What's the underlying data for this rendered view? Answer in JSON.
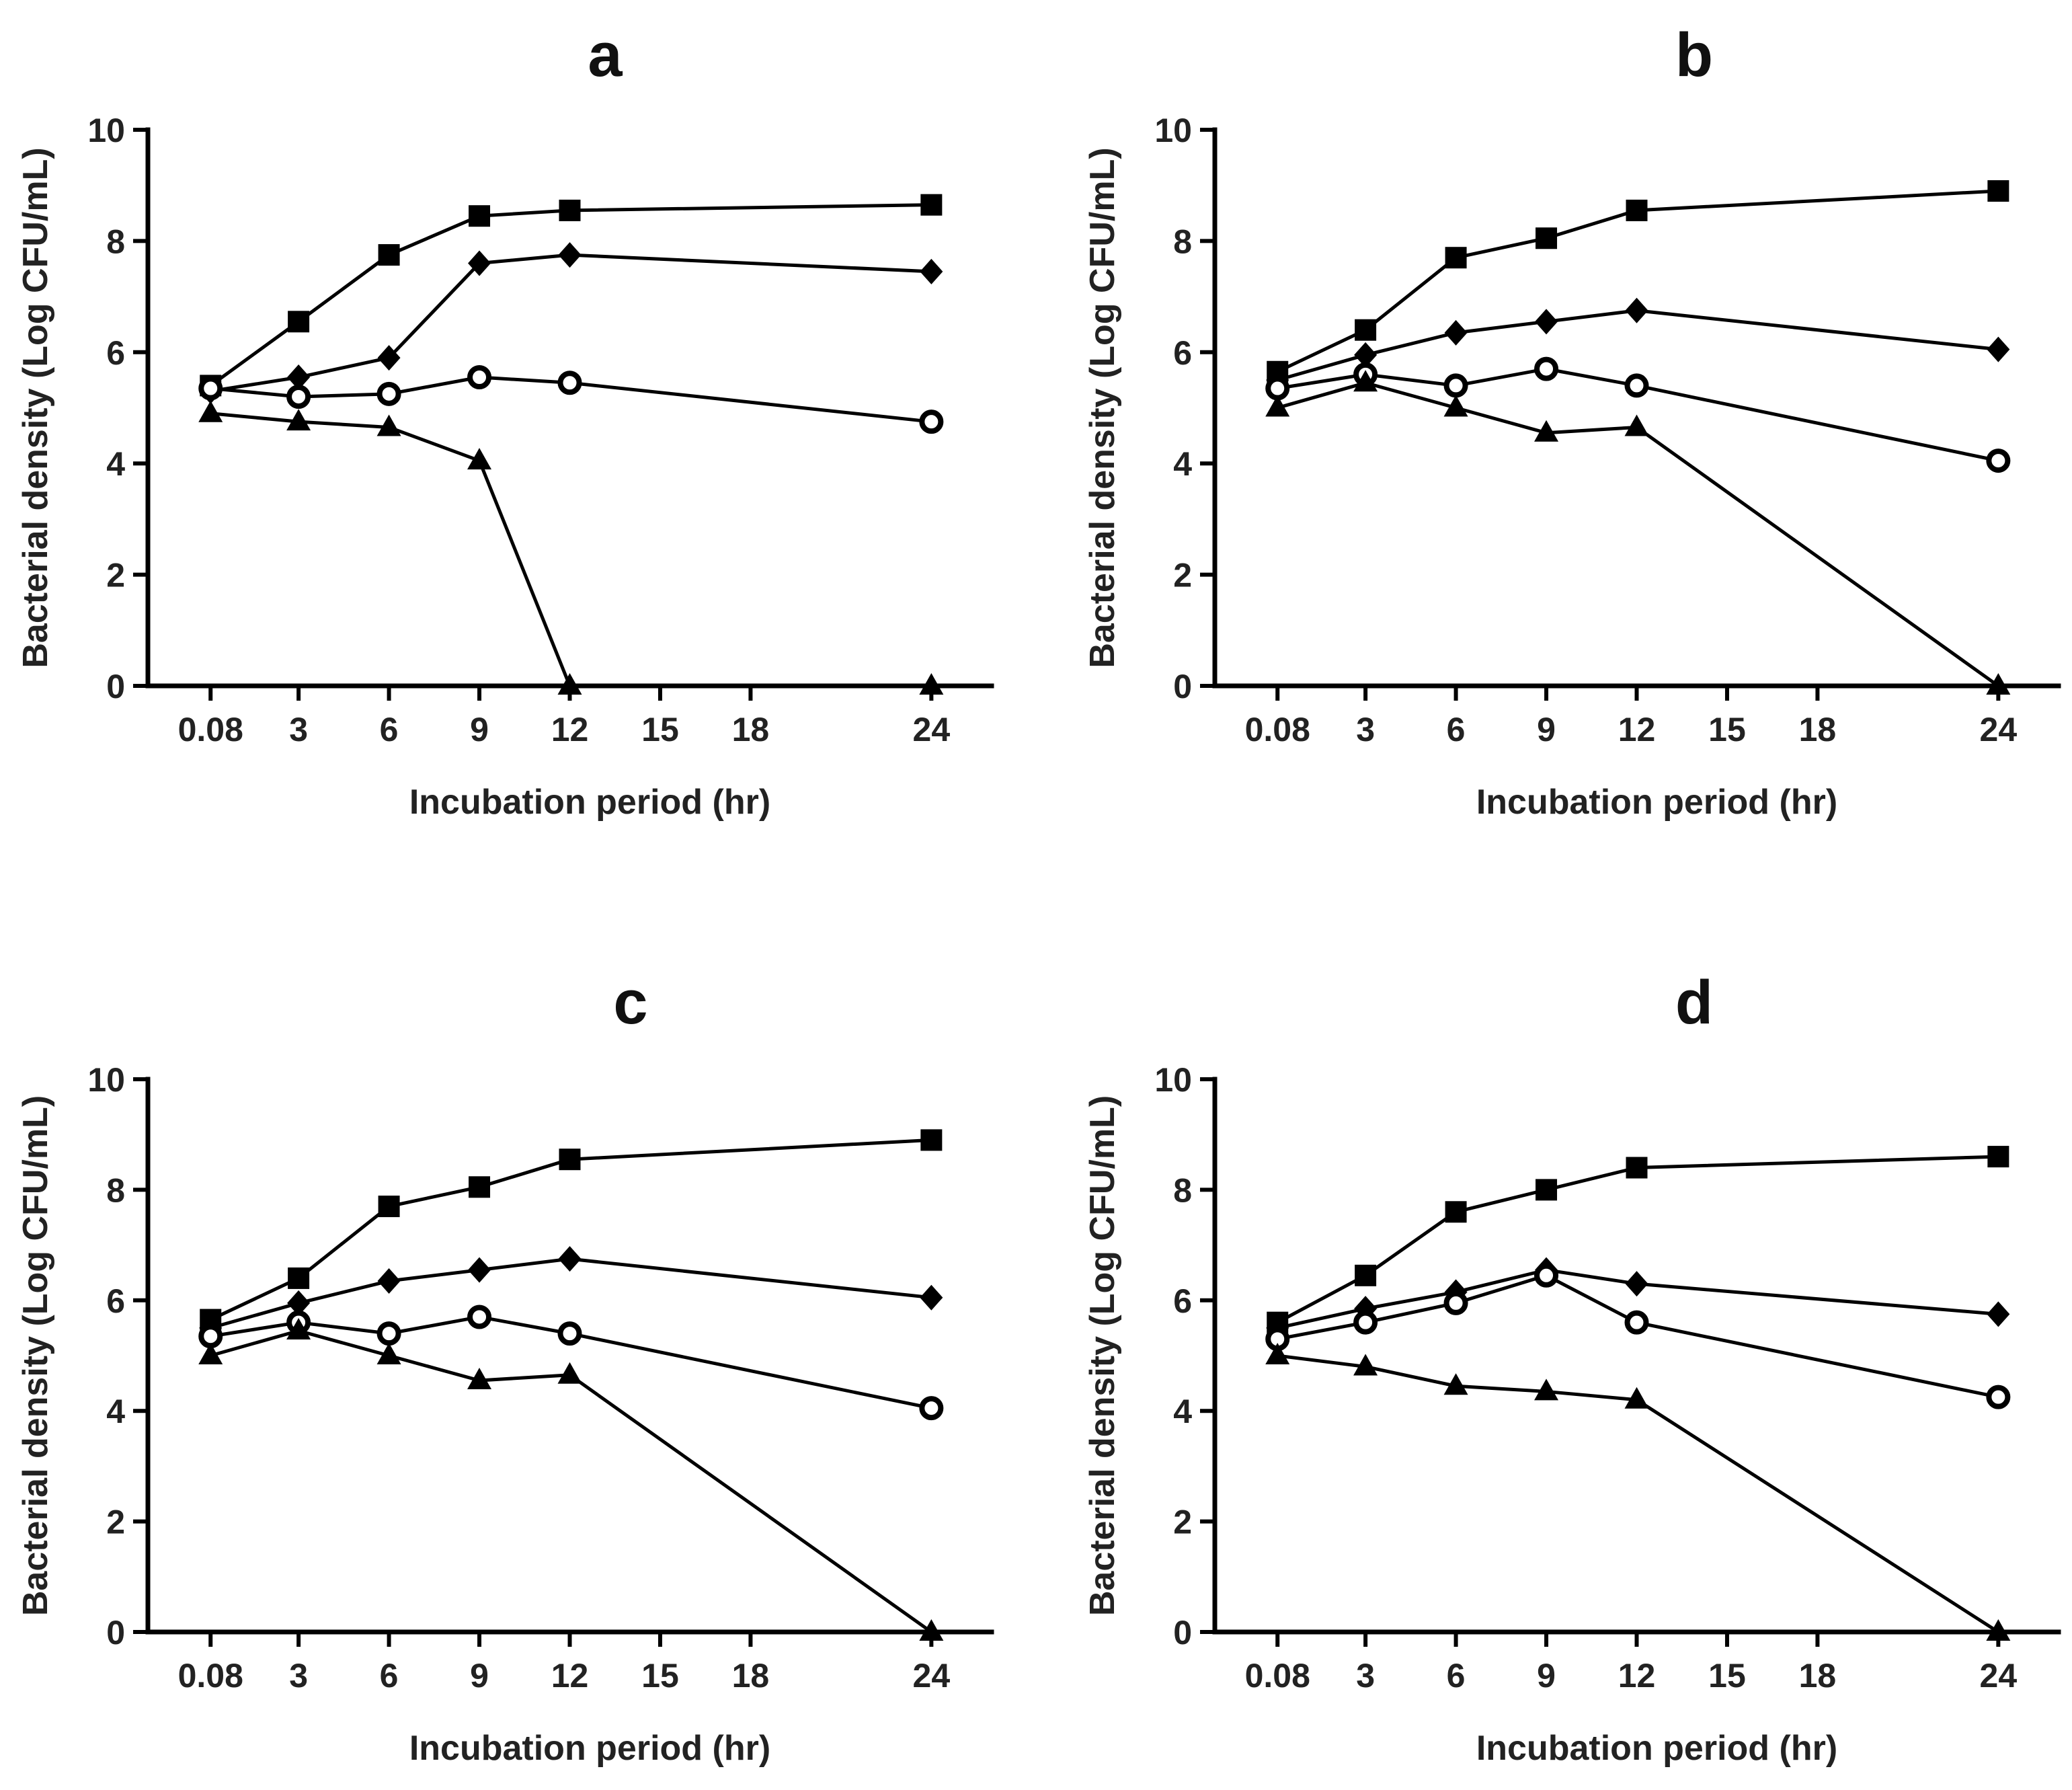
{
  "chart_data": [
    {
      "type": "line",
      "title": "a",
      "xlabel": "Incubation period (hr)",
      "ylabel": "Bacterial density (Log CFU/mL)",
      "xlim": [
        -2,
        26
      ],
      "ylim": [
        0,
        10
      ],
      "x_ticks": [
        0.08,
        3,
        6,
        9,
        12,
        15,
        18,
        24
      ],
      "x_tick_labels": [
        "0.08",
        "3",
        "6",
        "9",
        "12",
        "15",
        "18",
        "24"
      ],
      "y_ticks": [
        0,
        2,
        4,
        6,
        8,
        10
      ],
      "y_tick_labels": [
        "0",
        "2",
        "4",
        "6",
        "8",
        "10"
      ],
      "x": [
        0.08,
        3,
        6,
        9,
        12,
        24
      ],
      "series": [
        {
          "name": "square",
          "marker": "square",
          "values": [
            5.4,
            6.55,
            7.75,
            8.45,
            8.55,
            8.65
          ]
        },
        {
          "name": "diamond",
          "marker": "diamond",
          "values": [
            5.3,
            5.55,
            5.9,
            7.6,
            7.75,
            7.45
          ]
        },
        {
          "name": "circle",
          "marker": "circle",
          "values": [
            5.35,
            5.2,
            5.25,
            5.55,
            5.45,
            4.75
          ]
        },
        {
          "name": "triangle",
          "marker": "triangle",
          "values": [
            4.9,
            4.75,
            4.65,
            4.05,
            0,
            0
          ]
        }
      ]
    },
    {
      "type": "line",
      "title": "b",
      "xlabel": "Incubation period (hr)",
      "ylabel": "Bacterial density (Log CFU/mL)",
      "xlim": [
        -2,
        26
      ],
      "ylim": [
        0,
        10
      ],
      "x_ticks": [
        0.08,
        3,
        6,
        9,
        12,
        15,
        18,
        24
      ],
      "x_tick_labels": [
        "0.08",
        "3",
        "6",
        "9",
        "12",
        "15",
        "18",
        "24"
      ],
      "y_ticks": [
        0,
        2,
        4,
        6,
        8,
        10
      ],
      "y_tick_labels": [
        "0",
        "2",
        "4",
        "6",
        "8",
        "10"
      ],
      "x": [
        0.08,
        3,
        6,
        9,
        12,
        24
      ],
      "series": [
        {
          "name": "square",
          "marker": "square",
          "values": [
            5.65,
            6.4,
            7.7,
            8.05,
            8.55,
            8.9
          ]
        },
        {
          "name": "diamond",
          "marker": "diamond",
          "values": [
            5.5,
            5.95,
            6.35,
            6.55,
            6.75,
            6.05
          ]
        },
        {
          "name": "circle",
          "marker": "circle",
          "values": [
            5.35,
            5.6,
            5.4,
            5.7,
            5.4,
            4.05
          ]
        },
        {
          "name": "triangle",
          "marker": "triangle",
          "values": [
            5.0,
            5.45,
            5.0,
            4.55,
            4.65,
            0
          ]
        }
      ]
    },
    {
      "type": "line",
      "title": "c",
      "xlabel": "Incubation period (hr)",
      "ylabel": "Bacterial density (Log CFU/mL)",
      "xlim": [
        -2,
        26
      ],
      "ylim": [
        0,
        10
      ],
      "x_ticks": [
        0.08,
        3,
        6,
        9,
        12,
        15,
        18,
        24
      ],
      "x_tick_labels": [
        "0.08",
        "3",
        "6",
        "9",
        "12",
        "15",
        "18",
        "24"
      ],
      "y_ticks": [
        0,
        2,
        4,
        6,
        8,
        10
      ],
      "y_tick_labels": [
        "0",
        "2",
        "4",
        "6",
        "8",
        "10"
      ],
      "x": [
        0.08,
        3,
        6,
        9,
        12,
        24
      ],
      "series": [
        {
          "name": "square",
          "marker": "square",
          "values": [
            5.65,
            6.4,
            7.7,
            8.05,
            8.55,
            8.9
          ]
        },
        {
          "name": "diamond",
          "marker": "diamond",
          "values": [
            5.5,
            5.95,
            6.35,
            6.55,
            6.75,
            6.05
          ]
        },
        {
          "name": "circle",
          "marker": "circle",
          "values": [
            5.35,
            5.6,
            5.4,
            5.7,
            5.4,
            4.05
          ]
        },
        {
          "name": "triangle",
          "marker": "triangle",
          "values": [
            5.0,
            5.45,
            5.0,
            4.55,
            4.65,
            0
          ]
        }
      ]
    },
    {
      "type": "line",
      "title": "d",
      "xlabel": "Incubation period (hr)",
      "ylabel": "Bacterial density (Log CFU/mL)",
      "xlim": [
        -2,
        26
      ],
      "ylim": [
        0,
        10
      ],
      "x_ticks": [
        0.08,
        3,
        6,
        9,
        12,
        15,
        18,
        24
      ],
      "x_tick_labels": [
        "0.08",
        "3",
        "6",
        "9",
        "12",
        "15",
        "18",
        "24"
      ],
      "y_ticks": [
        0,
        2,
        4,
        6,
        8,
        10
      ],
      "y_tick_labels": [
        "0",
        "2",
        "4",
        "6",
        "8",
        "10"
      ],
      "x": [
        0.08,
        3,
        6,
        9,
        12,
        24
      ],
      "series": [
        {
          "name": "square",
          "marker": "square",
          "values": [
            5.6,
            6.45,
            7.6,
            8.0,
            8.4,
            8.6
          ]
        },
        {
          "name": "diamond",
          "marker": "diamond",
          "values": [
            5.5,
            5.85,
            6.15,
            6.55,
            6.3,
            5.75
          ]
        },
        {
          "name": "circle",
          "marker": "circle",
          "values": [
            5.3,
            5.6,
            5.95,
            6.45,
            5.6,
            4.25
          ]
        },
        {
          "name": "triangle",
          "marker": "triangle",
          "values": [
            5.0,
            4.8,
            4.45,
            4.35,
            4.2,
            0
          ]
        }
      ]
    }
  ]
}
